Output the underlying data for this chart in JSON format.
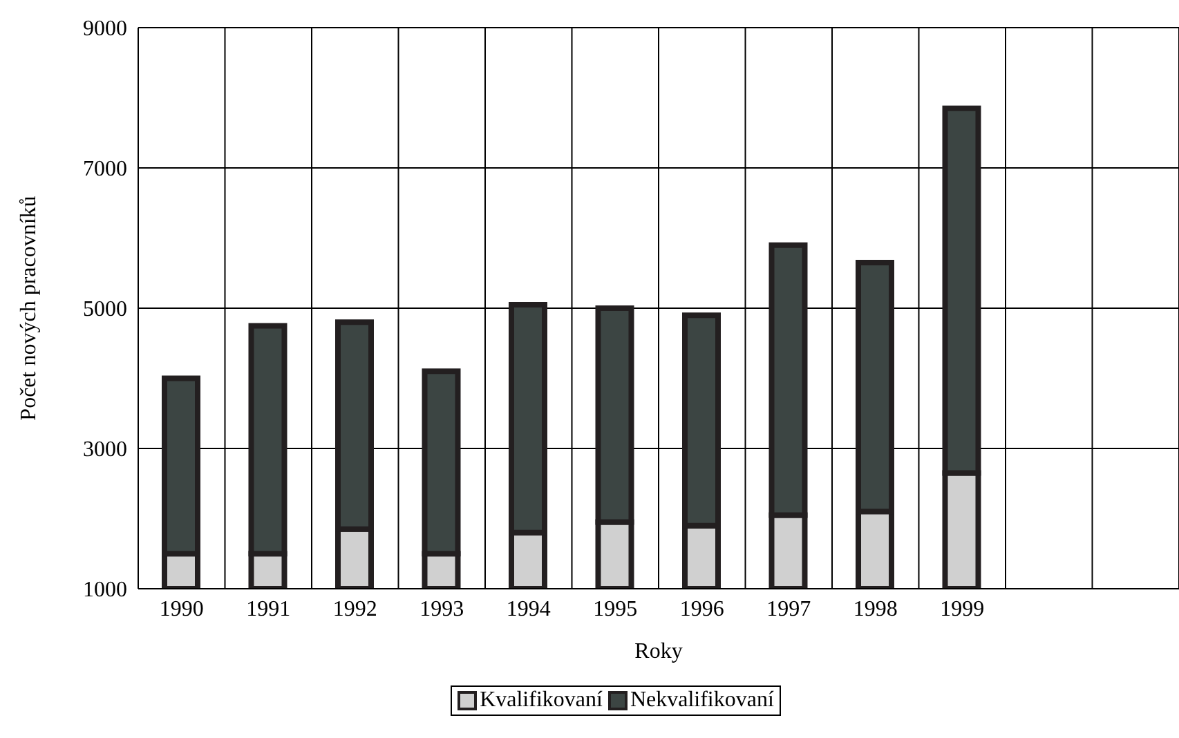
{
  "chart_data": {
    "type": "bar",
    "stacked": true,
    "xlabel": "Roky",
    "ylabel": "Počet nových pracovníků",
    "categories": [
      "1990",
      "1991",
      "1992",
      "1993",
      "1994",
      "1995",
      "1996",
      "1997",
      "1998",
      "1999",
      null,
      null
    ],
    "series": [
      {
        "name": "Kvalifikovaní",
        "color": "#d0d0d0",
        "values": [
          1500,
          1500,
          1850,
          1500,
          1800,
          1950,
          1900,
          2050,
          2100,
          2650,
          null,
          null
        ]
      },
      {
        "name": "Nekvalifikovaní",
        "color": "#3c4543",
        "values": [
          2500,
          3250,
          2950,
          2600,
          3250,
          3050,
          3000,
          3850,
          3550,
          5200,
          null,
          null
        ]
      }
    ],
    "ylim": [
      1000,
      9000
    ],
    "yticks": [
      1000,
      3000,
      5000,
      7000,
      9000
    ],
    "grid": true,
    "legend": "bottom"
  }
}
